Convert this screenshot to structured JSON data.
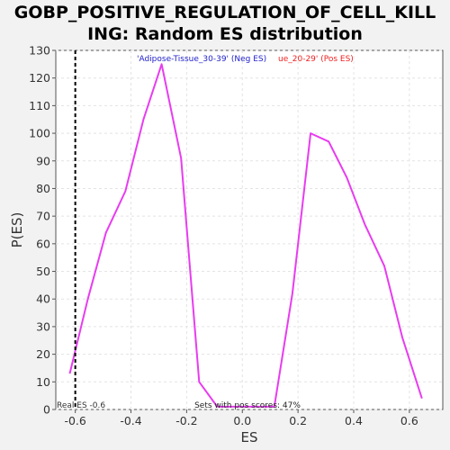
{
  "chart_data": {
    "type": "line",
    "title": "GOBP_POSITIVE_REGULATION_OF_CELL_KILLING: Random ES distribution",
    "title_lines": [
      "GOBP_POSITIVE_REGULATION_OF_CELL_KILL",
      "ING: Random ES distribution"
    ],
    "xlabel": "ES",
    "ylabel": "P(ES)",
    "xlim": [
      -0.67,
      0.72
    ],
    "ylim": [
      0,
      130
    ],
    "xticks": [
      -0.6,
      -0.4,
      -0.2,
      0.0,
      0.2,
      0.4,
      0.6
    ],
    "xtick_labels": [
      "-0.6",
      "-0.4",
      "-0.2",
      "0.0",
      "0.2",
      "0.4",
      "0.6"
    ],
    "yticks": [
      0,
      10,
      20,
      30,
      40,
      50,
      60,
      70,
      80,
      90,
      100,
      110,
      120,
      130
    ],
    "ytick_labels": [
      "0",
      "10",
      "20",
      "30",
      "40",
      "50",
      "60",
      "70",
      "80",
      "90",
      "100",
      "110",
      "120",
      "130"
    ],
    "grid": true,
    "series": [
      {
        "name": "'Adipose-Tissue_30-39' (Neg ES)",
        "color": "#e83cf0",
        "x": [
          -0.62,
          -0.555,
          -0.49,
          -0.42,
          -0.355,
          -0.29,
          -0.22,
          -0.155,
          -0.09
        ],
        "y": [
          13,
          40,
          64,
          79,
          105,
          125,
          91,
          10,
          1
        ]
      },
      {
        "name": "ue_20-29' (Pos ES)",
        "color": "#e83cf0",
        "x": [
          -0.09,
          0.115,
          0.18,
          0.245,
          0.31,
          0.375,
          0.44,
          0.51,
          0.575,
          0.645
        ],
        "y": [
          1,
          1,
          42,
          100,
          97,
          84,
          67,
          52,
          26,
          4
        ]
      }
    ],
    "legend": [
      {
        "text": "'Adipose-Tissue_30-39' (Neg ES)",
        "color": "#2222cc"
      },
      {
        "text": "ue_20-29' (Pos ES)",
        "color": "#ee2222"
      }
    ],
    "real_es": {
      "value": -0.6,
      "label": "Real ES -0.6"
    },
    "annotation": "Sets with pos scores: 47%",
    "colors": {
      "plot_bg": "#ffffff",
      "page_bg": "#f2f2f2",
      "line": "#e83cf0",
      "grid": "#e4e4e4",
      "axis": "#555555"
    }
  }
}
